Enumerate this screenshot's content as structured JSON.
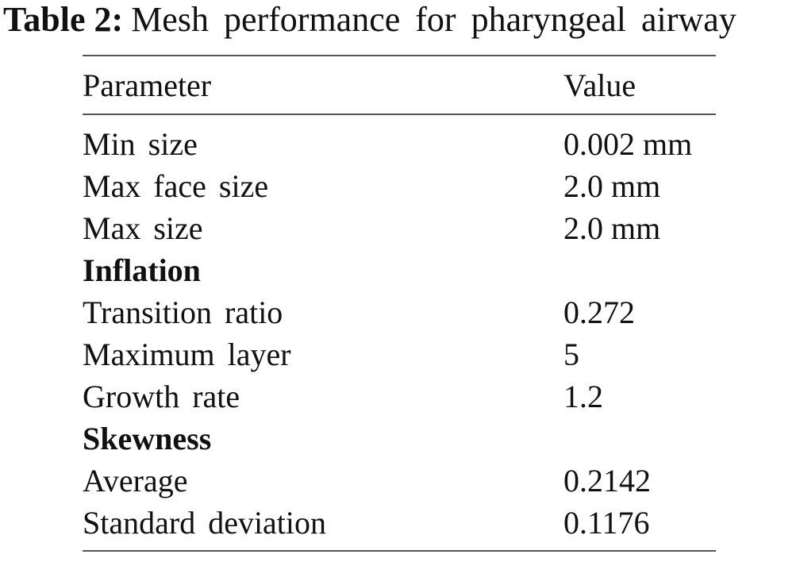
{
  "caption": {
    "label": "Table 2:",
    "text": "Mesh performance for pharyngeal airway"
  },
  "table": {
    "headers": {
      "parameter": "Parameter",
      "value": "Value"
    },
    "rows": [
      {
        "parameter": "Min size",
        "value": "0.002 mm"
      },
      {
        "parameter": "Max face size",
        "value": "2.0 mm"
      },
      {
        "parameter": "Max size",
        "value": "2.0 mm"
      },
      {
        "parameter": "Inflation",
        "value": ""
      },
      {
        "parameter": "Transition ratio",
        "value": "0.272"
      },
      {
        "parameter": "Maximum layer",
        "value": "5"
      },
      {
        "parameter": "Growth rate",
        "value": "1.2"
      },
      {
        "parameter": "Skewness",
        "value": ""
      },
      {
        "parameter": "Average",
        "value": "0.2142"
      },
      {
        "parameter": "Standard deviation",
        "value": "0.1176"
      }
    ]
  }
}
